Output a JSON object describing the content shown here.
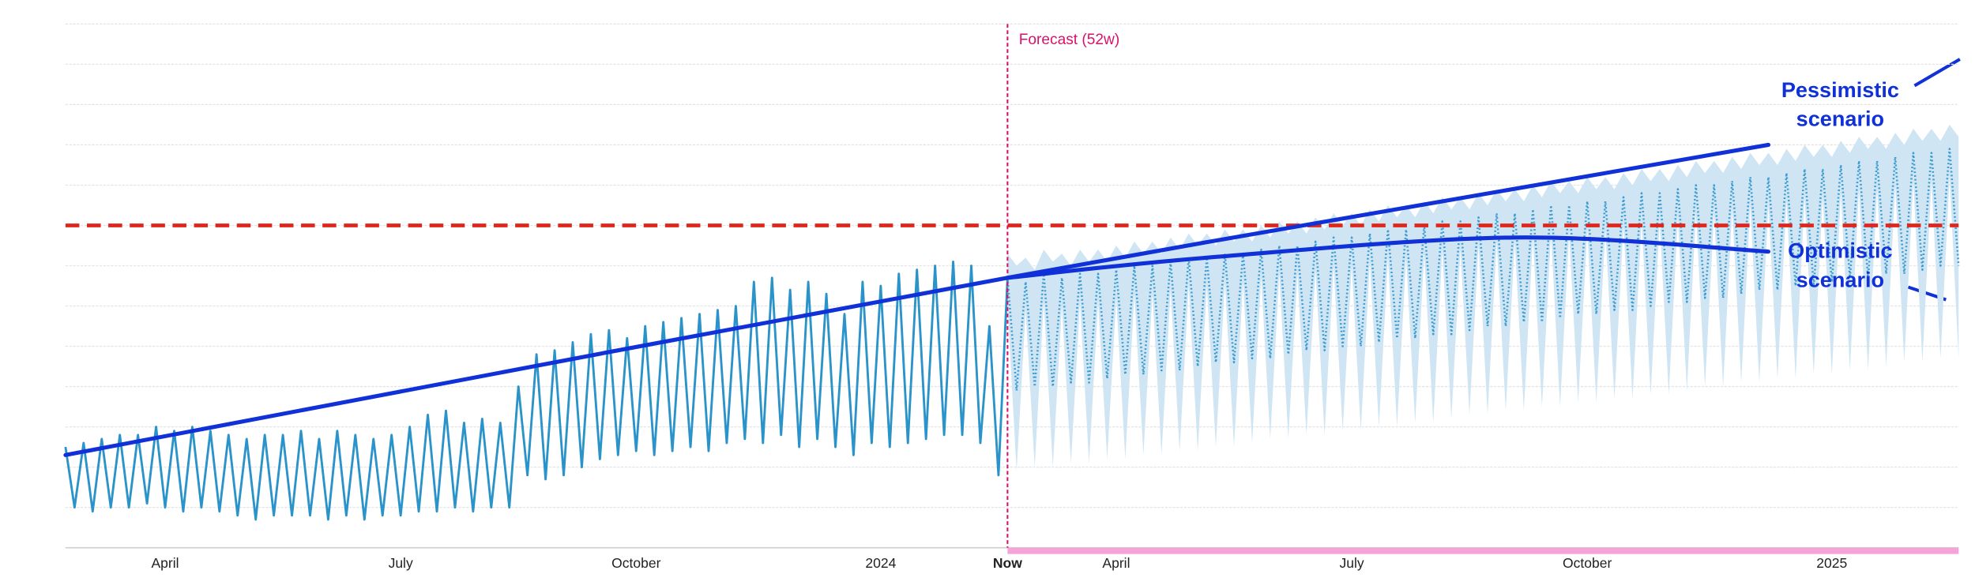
{
  "chart_data": {
    "type": "line",
    "forecast_label": "Forecast (52w)",
    "categories": [
      null,
      null,
      null,
      null,
      null,
      null,
      null,
      null,
      null,
      null,
      null,
      "April",
      null,
      null,
      null,
      null,
      null,
      null,
      null,
      null,
      null,
      null,
      null,
      null,
      null,
      null,
      null,
      null,
      null,
      null,
      null,
      null,
      null,
      null,
      null,
      null,
      null,
      "July",
      null,
      null,
      null,
      null,
      null,
      null,
      null,
      null,
      null,
      null,
      null,
      null,
      null,
      null,
      null,
      null,
      null,
      null,
      null,
      null,
      null,
      null,
      null,
      null,
      null,
      "October",
      null,
      null,
      null,
      null,
      null,
      null,
      null,
      null,
      null,
      null,
      null,
      null,
      null,
      null,
      null,
      null,
      null,
      null,
      null,
      null,
      null,
      null,
      null,
      null,
      null,
      null,
      "2024",
      null,
      null,
      null,
      null,
      null,
      null,
      null,
      null,
      null,
      null,
      null,
      null,
      null,
      "Now",
      null,
      null,
      null,
      null,
      null,
      null,
      null,
      null,
      null,
      null,
      null,
      "April",
      null,
      null,
      null,
      null,
      null,
      null,
      null,
      null,
      null,
      null,
      null,
      null,
      null,
      null,
      null,
      null,
      null,
      null,
      null,
      null,
      null,
      null,
      null,
      null,
      null,
      "July",
      null,
      null,
      null,
      null,
      null,
      null,
      null,
      null,
      null,
      null,
      null,
      null,
      null,
      null,
      null,
      null,
      null,
      null,
      null,
      null,
      null,
      null,
      null,
      null,
      null,
      "October",
      null,
      null,
      null,
      null,
      null,
      null,
      null,
      null,
      null,
      null,
      null,
      null,
      null,
      null,
      null,
      null,
      null,
      null,
      null,
      null,
      null,
      null,
      null,
      null,
      null,
      null,
      "2025",
      null,
      null,
      null,
      null,
      null,
      null,
      null,
      null,
      null,
      null,
      null,
      null,
      null,
      null
    ],
    "series": [
      {
        "color": "#2a93c9",
        "style": "solid",
        "values": [
          2.5,
          1.0,
          2.6,
          0.9,
          2.7,
          1.0,
          2.8,
          1.0,
          2.8,
          1.1,
          3.0,
          1.0,
          2.9,
          0.9,
          3.0,
          1.0,
          2.9,
          0.9,
          2.8,
          0.8,
          2.7,
          0.7,
          2.8,
          0.8,
          2.8,
          0.8,
          2.9,
          0.8,
          2.7,
          0.7,
          2.9,
          0.8,
          2.8,
          0.7,
          2.7,
          0.8,
          2.8,
          0.8,
          3.0,
          0.9,
          3.3,
          0.9,
          3.4,
          1.0,
          3.1,
          0.9,
          3.2,
          1.0,
          3.1,
          1.0,
          4.0,
          1.8,
          4.8,
          1.7,
          4.9,
          1.8,
          5.1,
          2.0,
          5.3,
          2.2,
          5.4,
          2.3,
          5.2,
          2.4,
          5.5,
          2.3,
          5.6,
          2.4,
          5.7,
          2.5,
          5.8,
          2.4,
          5.9,
          2.6,
          6.0,
          2.7,
          6.6,
          2.6,
          6.7,
          2.8,
          6.4,
          2.5,
          6.6,
          2.7,
          6.3,
          2.5,
          5.8,
          2.3,
          6.6,
          2.6,
          6.5,
          2.5,
          6.8,
          2.6,
          6.9,
          2.7,
          7.0,
          2.8,
          7.1,
          2.8,
          7.0,
          2.6,
          5.5,
          1.8,
          6.7,
          null,
          null,
          null,
          null,
          null,
          null,
          null,
          null,
          null,
          null,
          null,
          null,
          null,
          null,
          null,
          null,
          null,
          null,
          null,
          null,
          null,
          null,
          null,
          null,
          null,
          null,
          null,
          null,
          null,
          null,
          null,
          null,
          null,
          null,
          null,
          null,
          null,
          null,
          null,
          null,
          null,
          null,
          null,
          null,
          null,
          null,
          null,
          null,
          null,
          null,
          null,
          null,
          null,
          null,
          null,
          null,
          null,
          null,
          null,
          null,
          null,
          null,
          null,
          null,
          null,
          null,
          null,
          null,
          null,
          null,
          null,
          null,
          null,
          null,
          null,
          null,
          null,
          null,
          null,
          null,
          null,
          null,
          null,
          null,
          null,
          null,
          null,
          null,
          null,
          null,
          null,
          null,
          null,
          null,
          null,
          null,
          null,
          null,
          null,
          null,
          null,
          null,
          null,
          null,
          null
        ]
      },
      {
        "color": "#3a9bd0",
        "style": "dotted",
        "values": [
          null,
          null,
          null,
          null,
          null,
          null,
          null,
          null,
          null,
          null,
          null,
          null,
          null,
          null,
          null,
          null,
          null,
          null,
          null,
          null,
          null,
          null,
          null,
          null,
          null,
          null,
          null,
          null,
          null,
          null,
          null,
          null,
          null,
          null,
          null,
          null,
          null,
          null,
          null,
          null,
          null,
          null,
          null,
          null,
          null,
          null,
          null,
          null,
          null,
          null,
          null,
          null,
          null,
          null,
          null,
          null,
          null,
          null,
          null,
          null,
          null,
          null,
          null,
          null,
          null,
          null,
          null,
          null,
          null,
          null,
          null,
          null,
          null,
          null,
          null,
          null,
          null,
          null,
          null,
          null,
          null,
          null,
          null,
          null,
          null,
          null,
          null,
          null,
          null,
          null,
          null,
          null,
          null,
          null,
          null,
          null,
          null,
          null,
          null,
          null,
          null,
          null,
          null,
          null,
          6.7,
          3.9,
          6.6,
          4.0,
          6.8,
          4.0,
          6.7,
          4.1,
          6.8,
          4.1,
          6.8,
          4.2,
          6.9,
          4.3,
          7.0,
          4.3,
          7.0,
          4.4,
          7.1,
          4.4,
          7.2,
          4.5,
          7.2,
          4.6,
          7.3,
          4.6,
          7.3,
          4.7,
          7.4,
          4.7,
          7.5,
          4.8,
          7.5,
          4.9,
          7.6,
          4.9,
          7.7,
          5.0,
          7.7,
          5.0,
          7.8,
          5.1,
          7.9,
          5.2,
          7.9,
          5.2,
          8.0,
          5.3,
          8.1,
          5.3,
          8.1,
          5.4,
          8.2,
          5.5,
          8.3,
          5.5,
          8.3,
          5.6,
          8.4,
          5.6,
          8.5,
          5.7,
          8.5,
          5.8,
          8.6,
          5.8,
          8.6,
          5.9,
          8.7,
          5.9,
          8.8,
          6.0,
          8.8,
          6.1,
          8.9,
          6.1,
          9.0,
          6.2,
          9.0,
          6.2,
          9.1,
          6.3,
          9.2,
          6.4,
          9.2,
          6.4,
          9.3,
          6.5,
          9.4,
          6.5,
          9.4,
          6.6,
          9.5,
          6.7,
          9.6,
          6.7,
          9.6,
          6.8,
          9.7,
          6.8,
          9.8,
          6.9,
          9.8,
          7.0,
          9.9,
          7.0
        ]
      }
    ],
    "band": {
      "color": "#cfe5f3",
      "upper": [
        null,
        null,
        null,
        null,
        null,
        null,
        null,
        null,
        null,
        null,
        null,
        null,
        null,
        null,
        null,
        null,
        null,
        null,
        null,
        null,
        null,
        null,
        null,
        null,
        null,
        null,
        null,
        null,
        null,
        null,
        null,
        null,
        null,
        null,
        null,
        null,
        null,
        null,
        null,
        null,
        null,
        null,
        null,
        null,
        null,
        null,
        null,
        null,
        null,
        null,
        null,
        null,
        null,
        null,
        null,
        null,
        null,
        null,
        null,
        null,
        null,
        null,
        null,
        null,
        null,
        null,
        null,
        null,
        null,
        null,
        null,
        null,
        null,
        null,
        null,
        null,
        null,
        null,
        null,
        null,
        null,
        null,
        null,
        null,
        null,
        null,
        null,
        null,
        null,
        null,
        null,
        null,
        null,
        null,
        null,
        null,
        null,
        null,
        null,
        null,
        null,
        null,
        null,
        null,
        7.3,
        7.0,
        7.2,
        6.9,
        7.4,
        7.1,
        7.3,
        7.0,
        7.4,
        7.1,
        7.4,
        7.1,
        7.5,
        7.2,
        7.6,
        7.3,
        7.6,
        7.3,
        7.7,
        7.4,
        7.8,
        7.5,
        7.8,
        7.5,
        7.9,
        7.6,
        7.9,
        7.6,
        8.0,
        7.7,
        8.1,
        7.8,
        8.1,
        7.8,
        8.2,
        7.9,
        8.3,
        8.0,
        8.3,
        8.0,
        8.4,
        8.1,
        8.5,
        8.2,
        8.5,
        8.2,
        8.6,
        8.3,
        8.7,
        8.4,
        8.7,
        8.4,
        8.8,
        8.5,
        8.9,
        8.6,
        8.9,
        8.6,
        9.0,
        8.7,
        9.1,
        8.8,
        9.1,
        8.8,
        9.2,
        8.9,
        9.2,
        8.9,
        9.3,
        9.0,
        9.4,
        9.1,
        9.4,
        9.1,
        9.5,
        9.2,
        9.6,
        9.3,
        9.6,
        9.3,
        9.7,
        9.4,
        9.8,
        9.5,
        9.8,
        9.5,
        9.9,
        9.6,
        10.0,
        9.7,
        10.0,
        9.7,
        10.1,
        9.8,
        10.2,
        9.9,
        10.2,
        9.9,
        10.3,
        10.0,
        10.4,
        10.1,
        10.4,
        10.1,
        10.5,
        10.2
      ],
      "lower": [
        null,
        null,
        null,
        null,
        null,
        null,
        null,
        null,
        null,
        null,
        null,
        null,
        null,
        null,
        null,
        null,
        null,
        null,
        null,
        null,
        null,
        null,
        null,
        null,
        null,
        null,
        null,
        null,
        null,
        null,
        null,
        null,
        null,
        null,
        null,
        null,
        null,
        null,
        null,
        null,
        null,
        null,
        null,
        null,
        null,
        null,
        null,
        null,
        null,
        null,
        null,
        null,
        null,
        null,
        null,
        null,
        null,
        null,
        null,
        null,
        null,
        null,
        null,
        null,
        null,
        null,
        null,
        null,
        null,
        null,
        null,
        null,
        null,
        null,
        null,
        null,
        null,
        null,
        null,
        null,
        null,
        null,
        null,
        null,
        null,
        null,
        null,
        null,
        null,
        null,
        null,
        null,
        null,
        null,
        null,
        null,
        null,
        null,
        null,
        null,
        null,
        null,
        null,
        null,
        6.0,
        1.9,
        5.9,
        2.0,
        6.1,
        2.0,
        6.0,
        2.1,
        6.1,
        2.1,
        6.1,
        2.2,
        6.2,
        2.2,
        6.3,
        2.3,
        6.3,
        2.3,
        6.4,
        2.4,
        6.5,
        2.4,
        6.5,
        2.5,
        6.6,
        2.5,
        6.6,
        2.6,
        6.7,
        2.7,
        6.8,
        2.7,
        6.8,
        2.8,
        6.9,
        2.8,
        7.0,
        2.9,
        7.0,
        2.9,
        7.1,
        3.0,
        7.2,
        3.0,
        7.2,
        3.1,
        7.3,
        3.1,
        7.4,
        3.2,
        7.4,
        3.3,
        7.5,
        3.3,
        7.6,
        3.4,
        7.6,
        3.4,
        7.7,
        3.5,
        7.8,
        3.5,
        7.8,
        3.6,
        7.9,
        3.6,
        7.9,
        3.7,
        8.0,
        3.7,
        8.1,
        3.8,
        8.1,
        3.8,
        8.2,
        3.9,
        8.3,
        4.0,
        8.3,
        4.0,
        8.4,
        4.1,
        8.5,
        4.1,
        8.5,
        4.2,
        8.6,
        4.2,
        8.7,
        4.3,
        8.7,
        4.3,
        8.8,
        4.4,
        8.9,
        4.4,
        8.9,
        4.5,
        9.0,
        4.6,
        9.1,
        4.6,
        9.1,
        4.7,
        9.2,
        4.7
      ]
    },
    "trends": [
      {
        "name": "Pessimistic scenario",
        "color": "#1030d8",
        "x": [
          0,
          104,
          188
        ],
        "values": [
          2.3,
          6.7,
          10.0
        ]
      },
      {
        "name": "Optimistic scenario",
        "color": "#1030d8",
        "x": [
          104,
          126,
          160,
          188
        ],
        "values": [
          6.7,
          7.2,
          7.7,
          7.35
        ]
      }
    ],
    "threshold": 8.0,
    "threshold_color": "#e0261b",
    "ylim": [
      0,
      13
    ],
    "yticks": [
      0,
      1,
      2,
      3,
      4,
      5,
      6,
      7,
      8,
      9,
      10,
      11,
      12,
      13
    ],
    "grid": true
  }
}
